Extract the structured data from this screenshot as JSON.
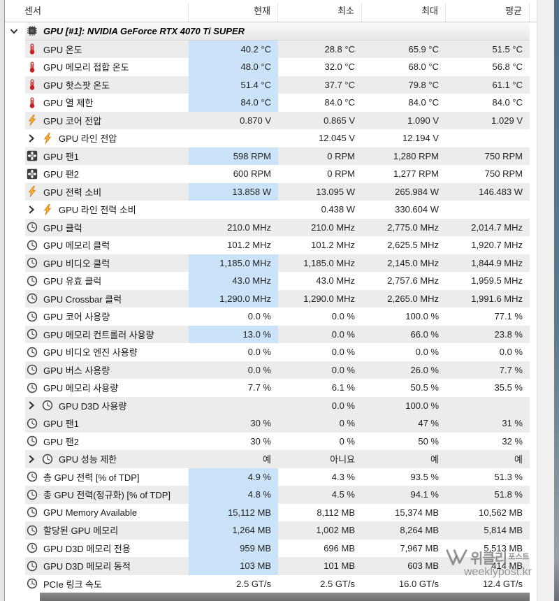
{
  "header": {
    "columns": [
      "센서",
      "현재",
      "최소",
      "최대",
      "평균"
    ]
  },
  "group": {
    "label": "GPU [#1]: NVIDIA GeForce RTX 4070 Ti SUPER",
    "icon": "gpu-chip-icon",
    "expanded": true
  },
  "rows": [
    {
      "icon": "thermometer",
      "label": "GPU 온도",
      "current": "40.2 °C",
      "min": "28.8 °C",
      "max": "65.9 °C",
      "avg": "51.5 °C",
      "highlight": true,
      "collapsed": false
    },
    {
      "icon": "thermometer",
      "label": "GPU 메모리 접합 온도",
      "current": "48.0 °C",
      "min": "32.0 °C",
      "max": "68.0 °C",
      "avg": "56.8 °C",
      "highlight": true,
      "collapsed": false
    },
    {
      "icon": "thermometer",
      "label": "GPU 핫스팟 온도",
      "current": "51.4 °C",
      "min": "37.7 °C",
      "max": "79.8 °C",
      "avg": "61.1 °C",
      "highlight": true,
      "collapsed": false
    },
    {
      "icon": "thermometer",
      "label": "GPU 열 제한",
      "current": "84.0 °C",
      "min": "84.0 °C",
      "max": "84.0 °C",
      "avg": "84.0 °C",
      "highlight": true,
      "collapsed": false
    },
    {
      "icon": "lightning",
      "label": "GPU 코어 전압",
      "current": "0.870 V",
      "min": "0.865 V",
      "max": "1.090 V",
      "avg": "1.029 V",
      "highlight": false,
      "collapsed": false
    },
    {
      "icon": "lightning",
      "label": "GPU 라인 전압",
      "current": "",
      "min": "12.045 V",
      "max": "12.194 V",
      "avg": "",
      "highlight": false,
      "collapsed": true
    },
    {
      "icon": "fan",
      "label": "GPU 팬1",
      "current": "598 RPM",
      "min": "0 RPM",
      "max": "1,280 RPM",
      "avg": "750 RPM",
      "highlight": true,
      "collapsed": false
    },
    {
      "icon": "fan",
      "label": "GPU 팬2",
      "current": "600 RPM",
      "min": "0 RPM",
      "max": "1,277 RPM",
      "avg": "750 RPM",
      "highlight": false,
      "collapsed": false
    },
    {
      "icon": "lightning",
      "label": "GPU 전력 소비",
      "current": "13.858 W",
      "min": "13.095 W",
      "max": "265.984 W",
      "avg": "146.483 W",
      "highlight": true,
      "collapsed": false
    },
    {
      "icon": "lightning",
      "label": "GPU 라인 전력 소비",
      "current": "",
      "min": "0.438 W",
      "max": "330.604 W",
      "avg": "",
      "highlight": false,
      "collapsed": true
    },
    {
      "icon": "clock",
      "label": "GPU 클럭",
      "current": "210.0 MHz",
      "min": "210.0 MHz",
      "max": "2,775.0 MHz",
      "avg": "2,014.7 MHz",
      "highlight": false,
      "collapsed": false
    },
    {
      "icon": "clock",
      "label": "GPU 메모리 클럭",
      "current": "101.2 MHz",
      "min": "101.2 MHz",
      "max": "2,625.5 MHz",
      "avg": "1,920.7 MHz",
      "highlight": false,
      "collapsed": false
    },
    {
      "icon": "clock",
      "label": "GPU 비디오 클럭",
      "current": "1,185.0 MHz",
      "min": "1,185.0 MHz",
      "max": "2,145.0 MHz",
      "avg": "1,844.9 MHz",
      "highlight": true,
      "collapsed": false
    },
    {
      "icon": "clock",
      "label": "GPU 유효 클럭",
      "current": "43.0 MHz",
      "min": "43.0 MHz",
      "max": "2,757.6 MHz",
      "avg": "1,959.5 MHz",
      "highlight": true,
      "collapsed": false
    },
    {
      "icon": "clock",
      "label": "GPU Crossbar 클럭",
      "current": "1,290.0 MHz",
      "min": "1,290.0 MHz",
      "max": "2,265.0 MHz",
      "avg": "1,991.6 MHz",
      "highlight": true,
      "collapsed": false
    },
    {
      "icon": "clock",
      "label": "GPU 코어 사용량",
      "current": "0.0 %",
      "min": "0.0 %",
      "max": "100.0 %",
      "avg": "77.1 %",
      "highlight": false,
      "collapsed": false
    },
    {
      "icon": "clock",
      "label": "GPU 메모리 컨트롤러 사용량",
      "current": "13.0 %",
      "min": "0.0 %",
      "max": "66.0 %",
      "avg": "23.8 %",
      "highlight": true,
      "collapsed": false
    },
    {
      "icon": "clock",
      "label": "GPU 비디오 엔진 사용량",
      "current": "0.0 %",
      "min": "0.0 %",
      "max": "0.0 %",
      "avg": "0.0 %",
      "highlight": false,
      "collapsed": false
    },
    {
      "icon": "clock",
      "label": "GPU 버스 사용량",
      "current": "0.0 %",
      "min": "0.0 %",
      "max": "26.0 %",
      "avg": "7.7 %",
      "highlight": false,
      "collapsed": false
    },
    {
      "icon": "clock",
      "label": "GPU 메모리 사용량",
      "current": "7.7 %",
      "min": "6.1 %",
      "max": "50.5 %",
      "avg": "35.5 %",
      "highlight": false,
      "collapsed": false
    },
    {
      "icon": "clock",
      "label": "GPU D3D 사용량",
      "current": "",
      "min": "0.0 %",
      "max": "100.0 %",
      "avg": "",
      "highlight": false,
      "collapsed": true
    },
    {
      "icon": "clock",
      "label": "GPU 팬1",
      "current": "30 %",
      "min": "0 %",
      "max": "47 %",
      "avg": "31 %",
      "highlight": false,
      "collapsed": false
    },
    {
      "icon": "clock",
      "label": "GPU 팬2",
      "current": "30 %",
      "min": "0 %",
      "max": "50 %",
      "avg": "32 %",
      "highlight": false,
      "collapsed": false
    },
    {
      "icon": "clock",
      "label": "GPU 성능 제한",
      "current": "예",
      "min": "아니요",
      "max": "예",
      "avg": "예",
      "highlight": false,
      "collapsed": true
    },
    {
      "icon": "clock",
      "label": "총 GPU 전력 [% of TDP]",
      "current": "4.9 %",
      "min": "4.3 %",
      "max": "93.5 %",
      "avg": "51.3 %",
      "highlight": true,
      "collapsed": false
    },
    {
      "icon": "clock",
      "label": "총 GPU 전력(정규화) [% of TDP]",
      "current": "4.8 %",
      "min": "4.5 %",
      "max": "94.1 %",
      "avg": "51.8 %",
      "highlight": true,
      "collapsed": false
    },
    {
      "icon": "clock",
      "label": "GPU Memory Available",
      "current": "15,112 MB",
      "min": "8,112 MB",
      "max": "15,374 MB",
      "avg": "10,562 MB",
      "highlight": true,
      "collapsed": false
    },
    {
      "icon": "clock",
      "label": "할당된 GPU 메모리",
      "current": "1,264 MB",
      "min": "1,002 MB",
      "max": "8,264 MB",
      "avg": "5,814 MB",
      "highlight": true,
      "collapsed": false
    },
    {
      "icon": "clock",
      "label": "GPU D3D 메모리 전용",
      "current": "959 MB",
      "min": "696 MB",
      "max": "7,967 MB",
      "avg": "5,513 MB",
      "highlight": true,
      "collapsed": false
    },
    {
      "icon": "clock",
      "label": "GPU D3D 메모리 동적",
      "current": "103 MB",
      "min": "101 MB",
      "max": "603 MB",
      "avg": "414 MB",
      "highlight": true,
      "collapsed": false
    },
    {
      "icon": "clock",
      "label": "PCIe 링크 속도",
      "current": "2.5 GT/s",
      "min": "2.5 GT/s",
      "max": "16.0 GT/s",
      "avg": "12.4 GT/s",
      "highlight": false,
      "collapsed": false
    }
  ],
  "watermark": {
    "brand": "위클리",
    "brand_small": "포스트",
    "url": "weeklypost.kr"
  },
  "colors": {
    "current_highlight": "#cbe3f8",
    "row_stripe": "#ececec",
    "thermometer_red": "#c41e1e",
    "lightning_orange": "#f9b233"
  }
}
